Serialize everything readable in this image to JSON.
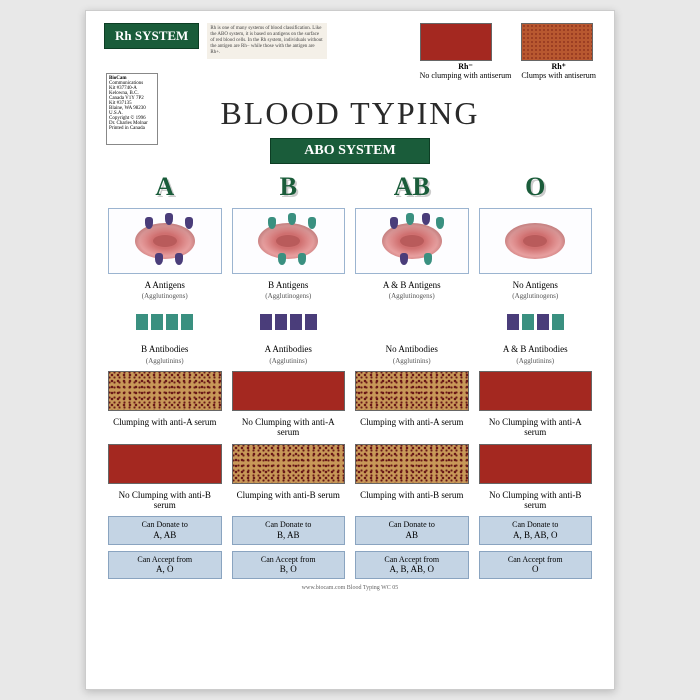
{
  "rh": {
    "badge": "Rh SYSTEM",
    "description": "Rh is one of many systems of blood classification. Like the ABO system, it is based on antigens on the surface of red blood cells. In the Rh system, individuals without the antigen are Rh− while those with the antigen are Rh+.",
    "neg_title": "Rh⁻",
    "neg_caption": "No clumping with antiserum",
    "pos_title": "Rh⁺",
    "pos_caption": "Clumps with antiserum",
    "colors": {
      "neg": "#a42820",
      "pos": "#b85830"
    }
  },
  "brand": {
    "name": "BioCam",
    "sub": "Communications",
    "lines": "Kit #37740-A\nKelowna, B.C.\nCanada V1Y 7P2\nKit #37135\nBlaine, WA 98230\nU.S.A.\nCopyright © 1996\nDr. Charles Molnar\nPrinted in Canada"
  },
  "title": "BLOOD TYPING",
  "abo_badge": "ABO SYSTEM",
  "types": [
    {
      "head": "A",
      "antigens": "A Antigens",
      "antibodies": "B Antibodies",
      "antiA": "clump",
      "antiA_label": "Clumping with anti-A serum",
      "antiB": "no-clump",
      "antiB_label": "No Clumping with anti-B serum",
      "donate": "A, AB",
      "accept": "A, O"
    },
    {
      "head": "B",
      "antigens": "B Antigens",
      "antibodies": "A Antibodies",
      "antiA": "no-clump",
      "antiA_label": "No Clumping with anti-A serum",
      "antiB": "clump",
      "antiB_label": "Clumping with anti-B serum",
      "donate": "B, AB",
      "accept": "B, O"
    },
    {
      "head": "AB",
      "antigens": "A & B Antigens",
      "antibodies": "No Antibodies",
      "antiA": "clump",
      "antiA_label": "Clumping with anti-A serum",
      "antiB": "clump",
      "antiB_label": "Clumping with anti-B serum",
      "donate": "AB",
      "accept": "A, B, AB, O"
    },
    {
      "head": "O",
      "antigens": "No Antigens",
      "antibodies": "A & B Antibodies",
      "antiA": "no-clump",
      "antiA_label": "No Clumping with anti-A serum",
      "antiB": "no-clump",
      "antiB_label": "No Clumping with anti-B serum",
      "donate": "A, B, AB, O",
      "accept": "O"
    }
  ],
  "captions": {
    "agglutinogens": "(Agglutinogens)",
    "agglutinins": "(Agglutinins)",
    "donate_prefix": "Can Donate to",
    "accept_prefix": "Can Accept from"
  },
  "footer": "www.biocam.com   Blood Typing  WC 05",
  "style": {
    "badge_bg": "#1a5c3a",
    "type_color": "#1a5c3a",
    "cell_border": "#9bb4d0",
    "infobox_bg": "#c4d4e4",
    "rbc_color": "#e8a0a0",
    "antigen_a_color": "#4a3d7a",
    "antigen_b_color": "#3a9080",
    "noclump_color": "#a42820",
    "clump_bg": "#c89858",
    "title_fontsize": 32,
    "head_fontsize": 26
  }
}
